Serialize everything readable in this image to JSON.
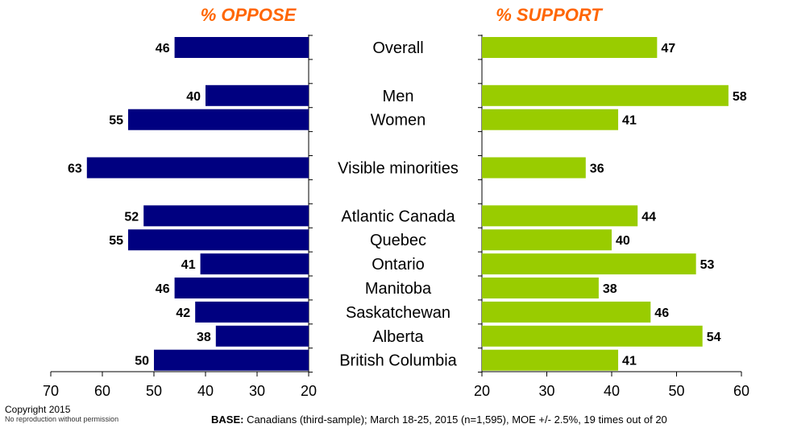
{
  "chart_data": {
    "type": "bar",
    "orientation": "horizontal",
    "categories": [
      "Overall",
      "Men",
      "Women",
      "Visible minorities",
      "Atlantic Canada",
      "Quebec",
      "Ontario",
      "Manitoba",
      "Saskatchewan",
      "Alberta",
      "British Columbia"
    ],
    "series": [
      {
        "name": "% OPPOSE",
        "values": [
          46,
          40,
          55,
          63,
          52,
          55,
          41,
          46,
          42,
          38,
          50
        ],
        "color": "#000080"
      },
      {
        "name": "% SUPPORT",
        "values": [
          47,
          58,
          41,
          36,
          44,
          40,
          53,
          38,
          46,
          54,
          41
        ],
        "color": "#99cc00"
      }
    ],
    "oppose_axis": {
      "ticks": [
        70,
        60,
        50,
        40,
        30,
        20
      ],
      "range": [
        70,
        20
      ]
    },
    "support_axis": {
      "ticks": [
        20,
        30,
        40,
        50,
        60
      ],
      "range": [
        20,
        60
      ]
    },
    "title_color": "#ff6600"
  },
  "footer": {
    "copyright": "Copyright 2015",
    "no_reproduction": "No reproduction without permission",
    "base_label": "BASE:",
    "base_text": " Canadians (third-sample); March 18-25, 2015 (n=1,595), MOE +/- 2.5%, 19 times out of 20"
  }
}
